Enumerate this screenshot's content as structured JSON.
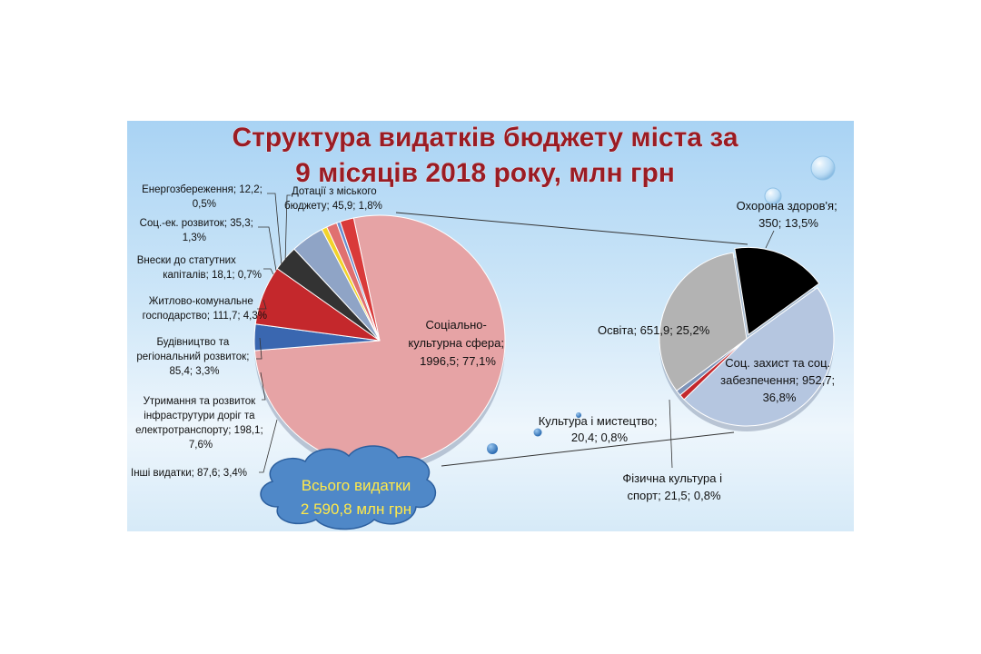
{
  "chart_data": [
    {
      "type": "pie",
      "title_lines": [
        "Структура видатків бюджету міста за",
        "9 місяців 2018 року, млн грн"
      ],
      "total_lines": [
        "Всього видатки",
        "2 590,8 млн грн"
      ],
      "slices": [
        {
          "name": "Соціально-культурна сфера",
          "value": 1996.5,
          "percent": 77.1,
          "color": "#e6a3a5",
          "label_lines": [
            "Соціально-",
            "культурна сфера;",
            "1996,5; 77,1%"
          ]
        },
        {
          "name": "Інші видатки",
          "value": 87.6,
          "percent": 3.4,
          "color": "#3a67b0",
          "label_lines": [
            "Інші видатки; 87,6; 3,4%"
          ]
        },
        {
          "name": "Утримання та розвиток інфраструтури доріг та електротранспорту",
          "value": 198.1,
          "percent": 7.6,
          "color": "#c4282c",
          "label_lines": [
            "Утримання та розвиток",
            "інфраструтури доріг та",
            "електротранспорту; 198,1;",
            "7,6%"
          ]
        },
        {
          "name": "Будівництво та регіональний розвиток",
          "value": 85.4,
          "percent": 3.3,
          "color": "#333333",
          "label_lines": [
            "Будівництво та",
            "регіональний розвиток;",
            "85,4; 3,3%"
          ]
        },
        {
          "name": "Житлово-комунальне господарство",
          "value": 111.7,
          "percent": 4.3,
          "color": "#8fa4c6",
          "label_lines": [
            "Житлово-комунальне",
            "господарство; 111,7; 4,3%"
          ]
        },
        {
          "name": "Внески до статутних капіталів",
          "value": 18.1,
          "percent": 0.7,
          "color": "#f2d32a",
          "label_lines": [
            "Внески до статутних",
            "капіталів; 18,1; 0,7%"
          ]
        },
        {
          "name": "Соц.-ек. розвиток",
          "value": 35.3,
          "percent": 1.3,
          "color": "#e07070",
          "label_lines": [
            "Соц.-ек. розвиток; 35,3;",
            "1,3%"
          ]
        },
        {
          "name": "Енергозбереження",
          "value": 12.2,
          "percent": 0.5,
          "color": "#6a8fd0",
          "label_lines": [
            "Енергозбереження; 12,2;",
            "0,5%"
          ]
        },
        {
          "name": "Дотації з міського бюджету",
          "value": 45.9,
          "percent": 1.8,
          "color": "#d93a3a",
          "label_lines": [
            "Дотації з міського",
            "бюджету; 45,9; 1,8%"
          ]
        }
      ]
    },
    {
      "type": "pie",
      "slices": [
        {
          "name": "Охорона здоров'я",
          "value": 350,
          "percent": 13.5,
          "color": "#000000",
          "label_lines": [
            "Охорона здоров'я;",
            "350; 13,5%"
          ]
        },
        {
          "name": "Соц. захист та соц. забезпечення",
          "value": 952.7,
          "percent": 36.8,
          "color": "#b5c6e0",
          "label_lines": [
            "Соц. захист та соц.",
            "забезпечення; 952,7;",
            "36,8%"
          ]
        },
        {
          "name": "Фізична культура і спорт",
          "value": 21.5,
          "percent": 0.8,
          "color": "#c4282c",
          "label_lines": [
            "Фізична культура і",
            "спорт; 21,5; 0,8%"
          ]
        },
        {
          "name": "Культура і мистецтво",
          "value": 20.4,
          "percent": 0.8,
          "color": "#7d93b8",
          "label_lines": [
            "Культура і мистецтво;",
            "20,4; 0,8%"
          ]
        },
        {
          "name": "Освіта",
          "value": 651.9,
          "percent": 25.2,
          "color": "#b3b3b3",
          "label_lines": [
            "Освіта; 651,9; 25,2%"
          ]
        }
      ]
    }
  ]
}
